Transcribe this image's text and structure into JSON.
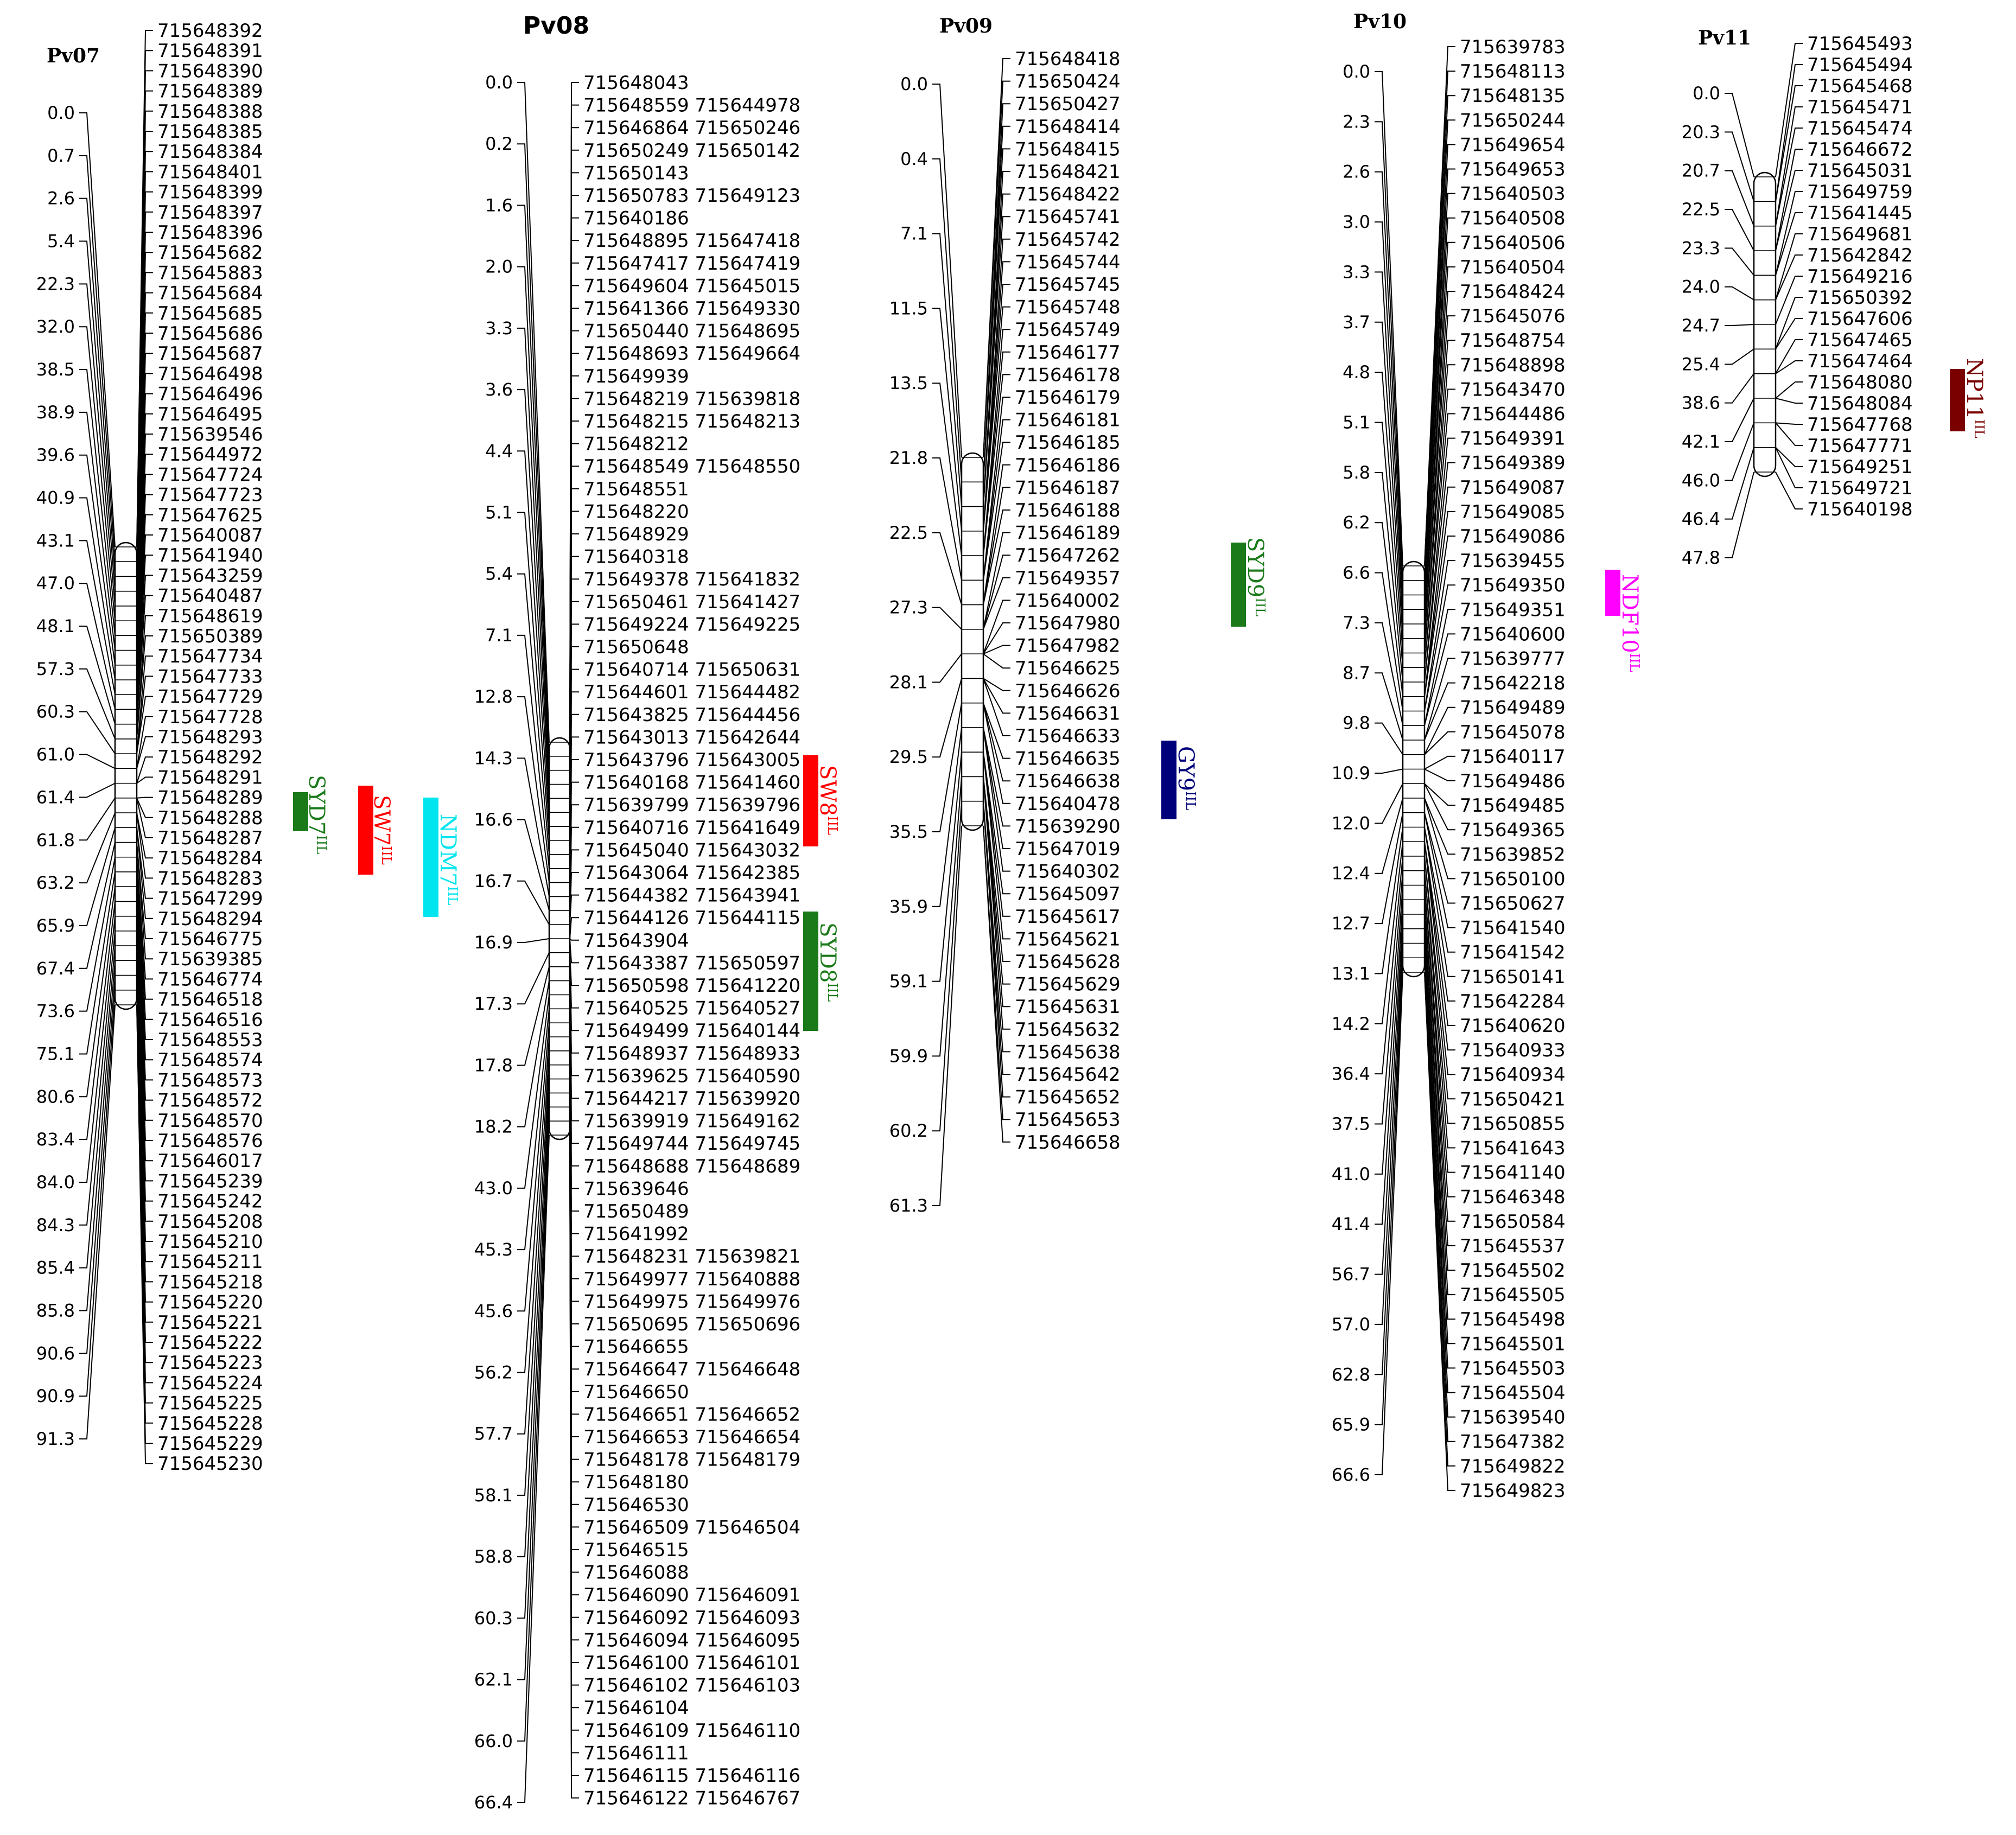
{
  "groups": [
    {
      "title": "Pv07",
      "positions": [
        "0.0",
        "0.7",
        "2.6",
        "5.4",
        "22.3",
        "32.0",
        "38.5",
        "38.9",
        "39.6",
        "40.9",
        "43.1",
        "47.0",
        "48.1",
        "57.3",
        "60.3",
        "61.0",
        "61.4",
        "61.8",
        "63.2",
        "65.9",
        "67.4",
        "73.6",
        "75.1",
        "80.6",
        "83.4",
        "84.0",
        "84.3",
        "85.4",
        "85.8",
        "90.6",
        "90.9",
        "91.3"
      ],
      "markers": [
        "715648392",
        "715648391",
        "715648390",
        "715648389",
        "715648388",
        "715648385",
        "715648384",
        "715648401",
        "715648399",
        "715648397",
        "715648396",
        "715645682",
        "715645883",
        "715645684",
        "715645685",
        "715645686",
        "715645687",
        "715646498",
        "715646496",
        "715646495",
        "715639546",
        "715644972",
        "715647724",
        "715647723",
        "715647625",
        "715640087",
        "715641940",
        "715643259",
        "715640487",
        "715648619",
        "715650389",
        "715647734",
        "715647733",
        "715647729",
        "715647728",
        "715648293",
        "715648292",
        "715648291",
        "715648289",
        "715648288",
        "715648287",
        "715648284",
        "715648283",
        "715647299",
        "715648294",
        "715646775",
        "715639385",
        "715646774",
        "715646518",
        "715646516",
        "715648553",
        "715648574",
        "715648573",
        "715648572",
        "715648570",
        "715648576",
        "715646017",
        "715645239",
        "715645242",
        "715645208",
        "715645210",
        "715645211",
        "715645218",
        "715645220",
        "715645221",
        "715645222",
        "715645223",
        "715645224",
        "715645225",
        "715645228",
        "715645229",
        "715645230"
      ]
    },
    {
      "title": "Pv08",
      "positions": [
        "0.0",
        "0.2",
        "1.6",
        "2.0",
        "3.3",
        "3.6",
        "4.4",
        "5.1",
        "5.4",
        "7.1",
        "12.8",
        "14.3",
        "16.6",
        "16.7",
        "16.9",
        "17.3",
        "17.8",
        "18.2",
        "43.0",
        "45.3",
        "45.6",
        "56.2",
        "57.7",
        "58.1",
        "58.8",
        "60.3",
        "62.1",
        "66.0",
        "66.4"
      ],
      "markers": [
        "715648043",
        "715648559 715644978",
        "715646864 715650246",
        "715650249 715650142",
        "715650143",
        "715650783 715649123",
        "715640186",
        "715648895 715647418",
        "715647417 715647419",
        "715649604 715645015",
        "715641366 715649330",
        "715650440 715648695",
        "715648693 715649664",
        "715649939",
        "715648219 715639818",
        "715648215 715648213",
        "715648212",
        "715648549 715648550",
        "715648551",
        "715648220",
        "715648929",
        "715640318",
        "715649378 715641832",
        "715650461 715641427",
        "715649224 715649225",
        "715650648",
        "715640714 715650631",
        "715644601 715644482",
        "715643825 715644456",
        "715643013 715642644",
        "715643796 715643005",
        "715640168 715641460",
        "715639799 715639796",
        "715640716 715641649",
        "715645040 715643032",
        "715643064 715642385",
        "715644382 715643941",
        "715644126 715644115",
        "715643904",
        "715643387 715650597",
        "715650598 715641220",
        "715640525 715640527",
        "715649499 715640144",
        "715648937 715648933",
        "715639625 715640590",
        "715644217 715639920",
        "715639919 715649162",
        "715649744 715649745",
        "715648688 715648689",
        "715639646",
        "715650489",
        "715641992",
        "715648231 715639821",
        "715649977 715640888",
        "715649975 715649976",
        "715650695 715650696",
        "715646655",
        "715646647 715646648",
        "715646650",
        "715646651 715646652",
        "715646653 715646654",
        "715648178 715648179",
        "715648180",
        "715646530",
        "715646509 715646504",
        "715646515",
        "715646088",
        "715646090 715646091",
        "715646092 715646093",
        "715646094 715646095",
        "715646100 715646101",
        "715646102 715646103",
        "715646104",
        "715646109 715646110",
        "715646111",
        "715646115 715646116",
        "715646122 715646767"
      ]
    },
    {
      "title": "Pv09",
      "positions": [
        "0.0",
        "0.4",
        "7.1",
        "11.5",
        "13.5",
        "21.8",
        "22.5",
        "27.3",
        "28.1",
        "29.5",
        "35.5",
        "35.9",
        "59.1",
        "59.9",
        "60.2",
        "61.3"
      ],
      "markers": [
        "715648418",
        "715650424",
        "715650427",
        "715648414",
        "715648415",
        "715648421",
        "715648422",
        "715645741",
        "715645742",
        "715645744",
        "715645745",
        "715645748",
        "715645749",
        "715646177",
        "715646178",
        "715646179",
        "715646181",
        "715646185",
        "715646186",
        "715646187",
        "715646188",
        "715646189",
        "715647262",
        "715649357",
        "715640002",
        "715647980",
        "715647982",
        "715646625",
        "715646626",
        "715646631",
        "715646633",
        "715646635",
        "715646638",
        "715640478",
        "715639290",
        "715647019",
        "715640302",
        "715645097",
        "715645617",
        "715645621",
        "715645628",
        "715645629",
        "715645631",
        "715645632",
        "715645638",
        "715645642",
        "715645652",
        "715645653",
        "715646658"
      ]
    },
    {
      "title": "Pv10",
      "positions": [
        "0.0",
        "2.3",
        "2.6",
        "3.0",
        "3.3",
        "3.7",
        "4.8",
        "5.1",
        "5.8",
        "6.2",
        "6.6",
        "7.3",
        "8.7",
        "9.8",
        "10.9",
        "12.0",
        "12.4",
        "12.7",
        "13.1",
        "14.2",
        "36.4",
        "37.5",
        "41.0",
        "41.4",
        "56.7",
        "57.0",
        "62.8",
        "65.9",
        "66.6"
      ],
      "markers": [
        "715639783",
        "715648113",
        "715648135",
        "715650244",
        "715649654",
        "715649653",
        "715640503",
        "715640508",
        "715640506",
        "715640504",
        "715648424",
        "715645076",
        "715648754",
        "715648898",
        "715643470",
        "715644486",
        "715649391",
        "715649389",
        "715649087",
        "715649085",
        "715649086",
        "715639455",
        "715649350",
        "715649351",
        "715640600",
        "715639777",
        "715642218",
        "715649489",
        "715645078",
        "715640117",
        "715649486",
        "715649485",
        "715649365",
        "715639852",
        "715650100",
        "715650627",
        "715641540",
        "715641542",
        "715650141",
        "715642284",
        "715640620",
        "715640933",
        "715640934",
        "715650421",
        "715650855",
        "715641643",
        "715641140",
        "715646348",
        "715650584",
        "715645537",
        "715645502",
        "715645505",
        "715645498",
        "715645501",
        "715645503",
        "715645504",
        "715639540",
        "715647382",
        "715649822",
        "715649823"
      ]
    },
    {
      "title": "Pv11",
      "positions": [
        "0.0",
        "20.3",
        "20.7",
        "22.5",
        "23.3",
        "24.0",
        "24.7",
        "25.4",
        "38.6",
        "42.1",
        "46.0",
        "46.4",
        "47.8"
      ],
      "markers": [
        "715645493",
        "715645494",
        "715645468",
        "715645471",
        "715645474",
        "715646672",
        "715645031",
        "715649759",
        "715641445",
        "715649681",
        "715642842",
        "715649216",
        "715650392",
        "715647606",
        "715647465",
        "715647464",
        "715648080",
        "715648084",
        "715647768",
        "715647771",
        "715649251",
        "715649721",
        "715640198"
      ]
    }
  ],
  "qtls": [
    {
      "label": "SYD7",
      "superscript": "IIL",
      "color": "#1a7a1a"
    },
    {
      "label": "SW7",
      "superscript": "IIL",
      "color": "#ff0000"
    },
    {
      "label": "NDM7",
      "superscript": "IIL",
      "color": "#00e5ee"
    },
    {
      "label": "SW8",
      "superscript": "IIL",
      "color": "#ff0000"
    },
    {
      "label": "SYD8",
      "superscript": "IIL",
      "color": "#1a7a1a"
    },
    {
      "label": "SYD9",
      "superscript": "IIL",
      "color": "#1a7a1a"
    },
    {
      "label": "GY9",
      "superscript": "IIL",
      "color": "#00007a"
    },
    {
      "label": "NDF10",
      "superscript": "IIL",
      "color": "#ff00ff"
    },
    {
      "label": "NP11",
      "superscript": "IIL",
      "color": "#7a0000"
    }
  ]
}
